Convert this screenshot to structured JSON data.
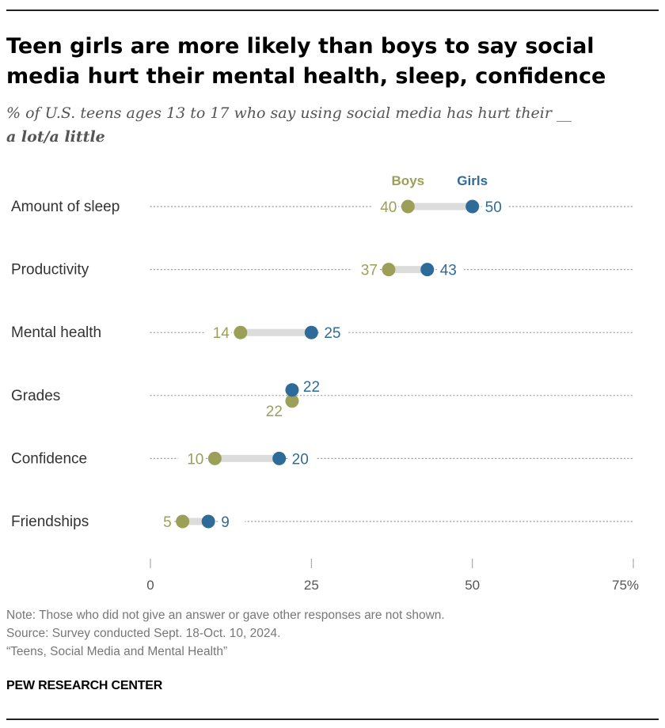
{
  "title": "Teen girls are more likely than boys to say social media hurt their mental health, sleep, confidence",
  "subtitle_lead": "% of U.S. teens ages 13 to 17 who say using social media has hurt their __",
  "subtitle_emphasis": "a lot/a little",
  "chart_data": {
    "type": "dot-plot",
    "categories": [
      "Amount of sleep",
      "Productivity",
      "Mental health",
      "Grades",
      "Confidence",
      "Friendships"
    ],
    "series": [
      {
        "name": "Boys",
        "color": "#9c9f57",
        "values": [
          40,
          37,
          14,
          22,
          10,
          5
        ]
      },
      {
        "name": "Girls",
        "color": "#2f6b98",
        "values": [
          50,
          43,
          25,
          22,
          20,
          9
        ]
      }
    ],
    "xlim": [
      0,
      75
    ],
    "xticks": [
      "0",
      "25",
      "50",
      "75%"
    ],
    "xtick_values": [
      0,
      25,
      50,
      75
    ],
    "legend_placement": "top, above first row"
  },
  "footer": {
    "note": "Note: Those who did not give an answer or gave other responses are not shown.",
    "source": "Source: Survey conducted Sept. 18-Oct. 10, 2024.",
    "report": "“Teens, Social Media and Mental Health”"
  },
  "brand": "PEW RESEARCH CENTER"
}
